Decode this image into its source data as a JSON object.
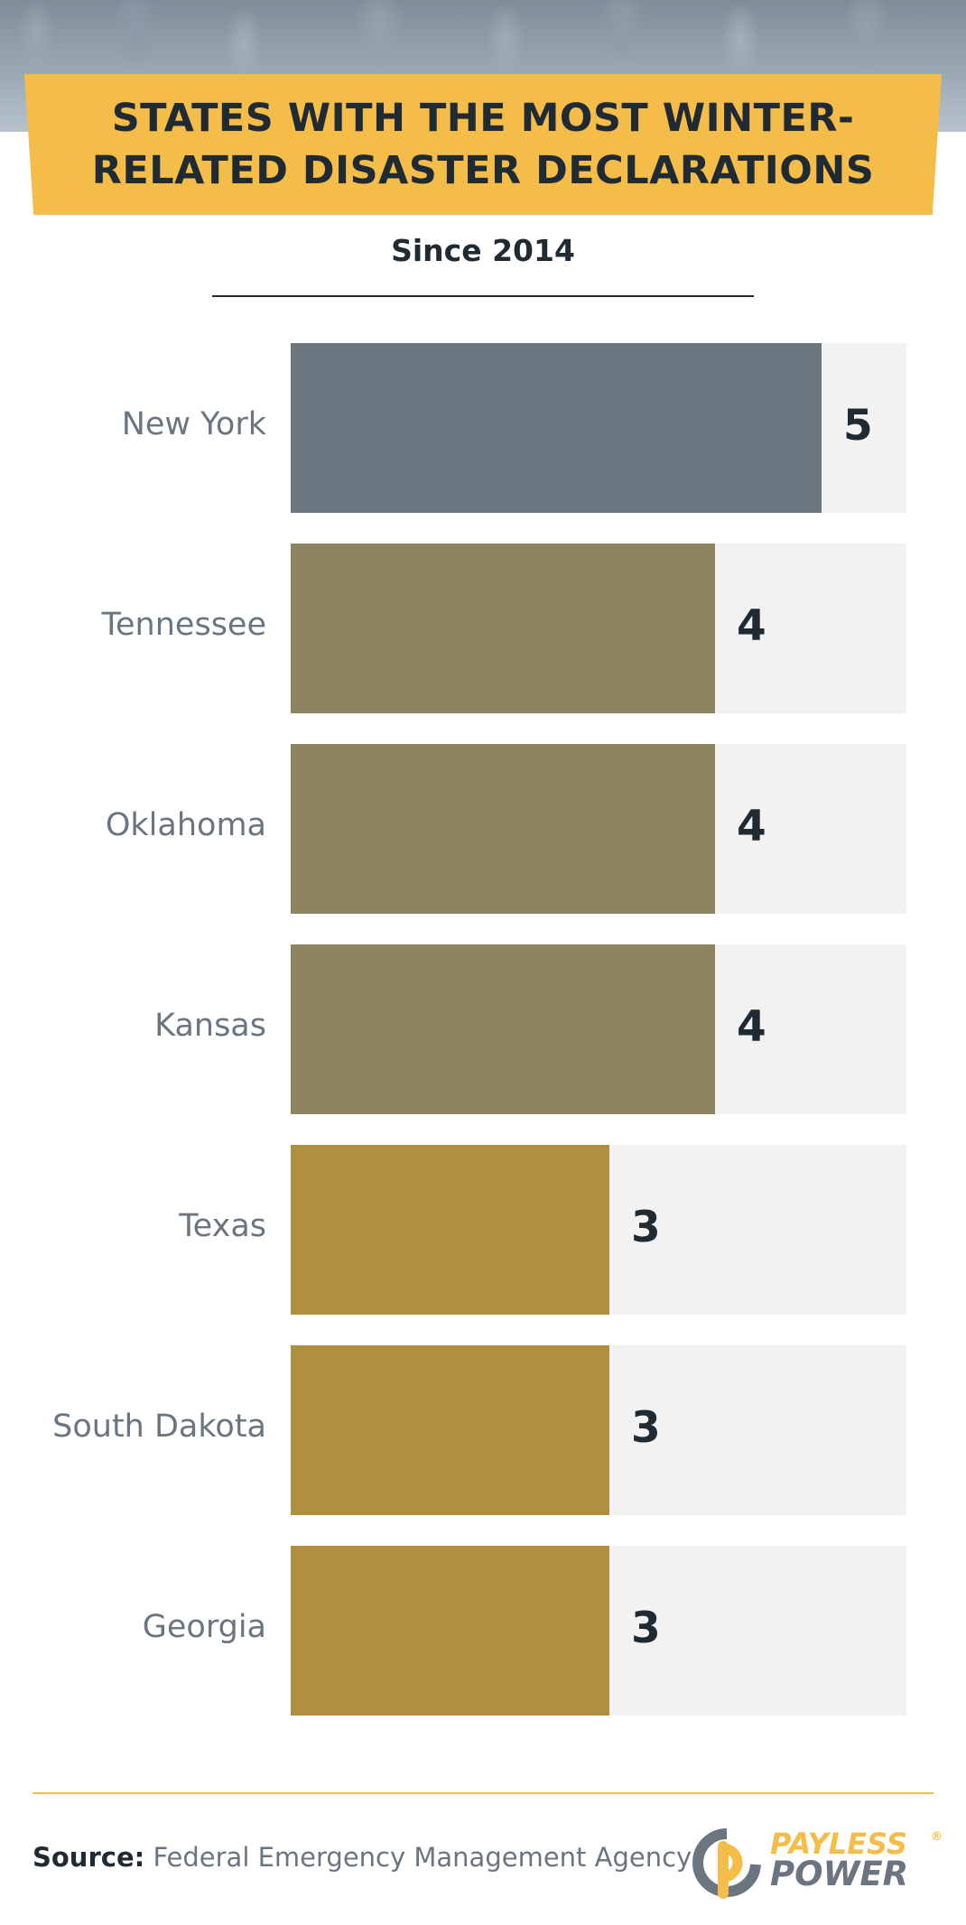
{
  "title": "STATES WITH THE MOST WINTER-RELATED DISASTER DECLARATIONS",
  "subtitle": "Since 2014",
  "chart_data": {
    "type": "bar",
    "orientation": "horizontal",
    "title": "STATES WITH THE MOST WINTER-RELATED DISASTER DECLARATIONS",
    "subtitle": "Since 2014",
    "categories": [
      "New York",
      "Tennessee",
      "Oklahoma",
      "Kansas",
      "Texas",
      "South Dakota",
      "Georgia"
    ],
    "values": [
      5,
      4,
      4,
      4,
      3,
      3,
      3
    ],
    "xlim": [
      0,
      5.8
    ],
    "grid": false,
    "colors": {
      "5": "#6b7780",
      "4": "#8e8460",
      "3": "#b08f3e",
      "track": "#f2f2f2",
      "accent": "#f4bd4a"
    }
  },
  "footer": {
    "source_label": "Source:",
    "source_text": "Federal Emergency Management Agency"
  },
  "logo": {
    "line1": "PAYLESS",
    "line2": "POWER",
    "mark": "®",
    "icon": "payless-power-logo-icon"
  }
}
